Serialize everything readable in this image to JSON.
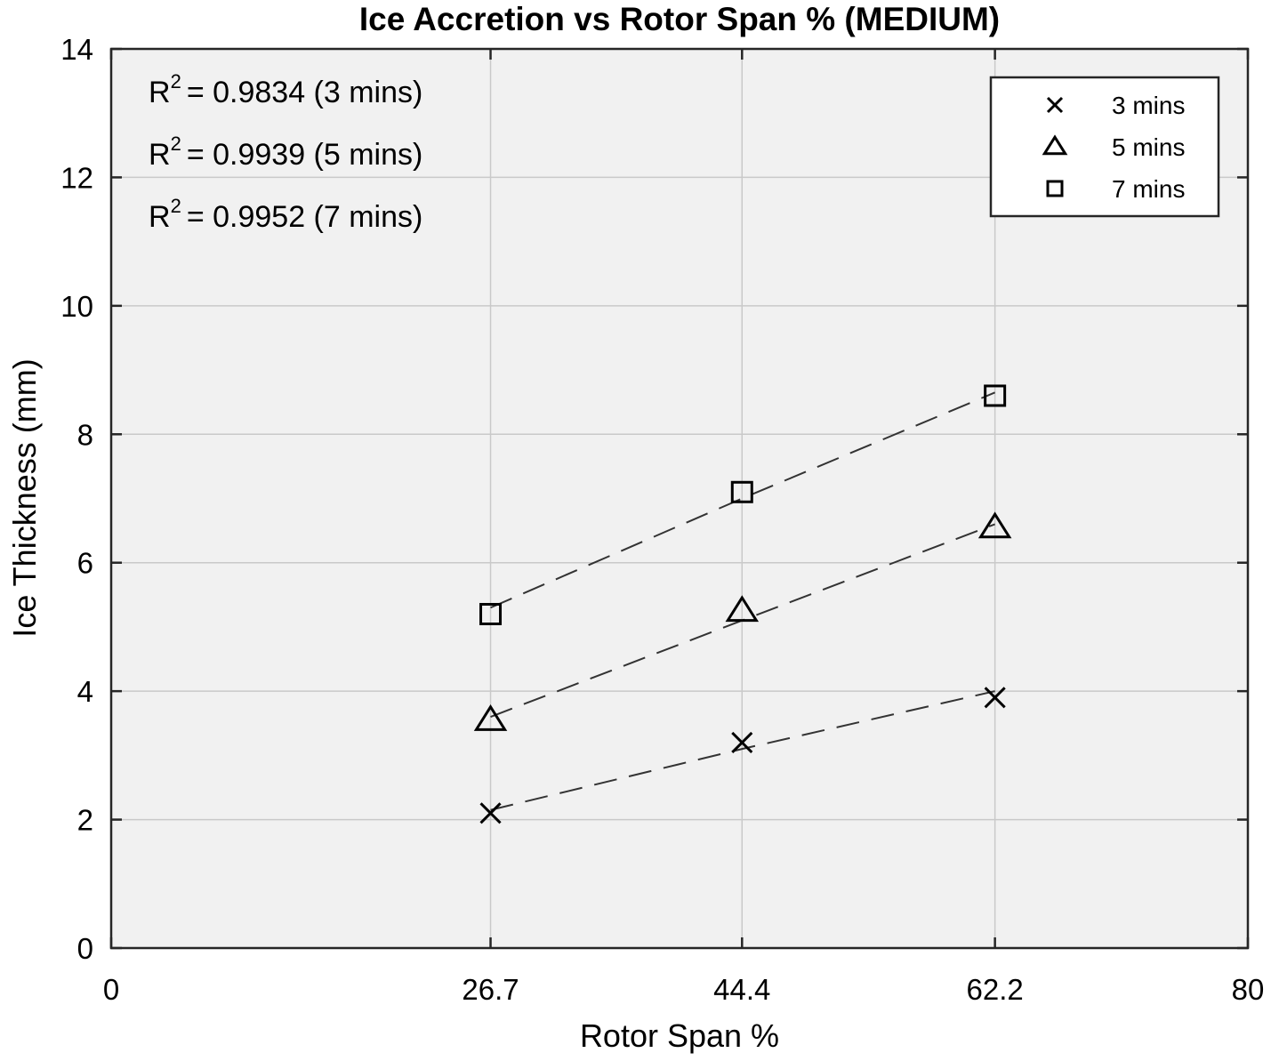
{
  "chart_data": {
    "type": "scatter",
    "title": "Ice Accretion vs Rotor Span % (MEDIUM)",
    "xlabel": "Rotor Span %",
    "ylabel": "Ice Thickness (mm)",
    "xlim": [
      0,
      80
    ],
    "ylim": [
      0,
      14
    ],
    "x_ticks": [
      0,
      26.7,
      44.4,
      62.2,
      80
    ],
    "x_tick_labels": [
      "0",
      "26.7",
      "44.4",
      "62.2",
      "80"
    ],
    "y_ticks": [
      0,
      2,
      4,
      6,
      8,
      10,
      12,
      14
    ],
    "y_tick_labels": [
      "0",
      "2",
      "4",
      "6",
      "8",
      "10",
      "12",
      "14"
    ],
    "grid": true,
    "legend_position": "top-right",
    "series": [
      {
        "name": "3 mins",
        "marker": "x",
        "x": [
          26.7,
          44.4,
          62.2
        ],
        "y": [
          2.1,
          3.2,
          3.9
        ],
        "fit": [
          2.15,
          3.1,
          4.0
        ]
      },
      {
        "name": "5 mins",
        "marker": "triangle",
        "x": [
          26.7,
          44.4,
          62.2
        ],
        "y": [
          3.55,
          5.25,
          6.55
        ],
        "fit": [
          3.6,
          5.1,
          6.6
        ]
      },
      {
        "name": "7 mins",
        "marker": "square",
        "x": [
          26.7,
          44.4,
          62.2
        ],
        "y": [
          5.2,
          7.1,
          8.6
        ],
        "fit": [
          5.3,
          7.0,
          8.65
        ]
      }
    ],
    "annotations": [
      {
        "r2_prefix": "R",
        "r2_sup": "2",
        "text": "= 0.9834 (3 mins)"
      },
      {
        "r2_prefix": "R",
        "r2_sup": "2",
        "text": "= 0.9939 (5 mins)"
      },
      {
        "r2_prefix": "R",
        "r2_sup": "2",
        "text": "= 0.9952 (7 mins)"
      }
    ]
  }
}
